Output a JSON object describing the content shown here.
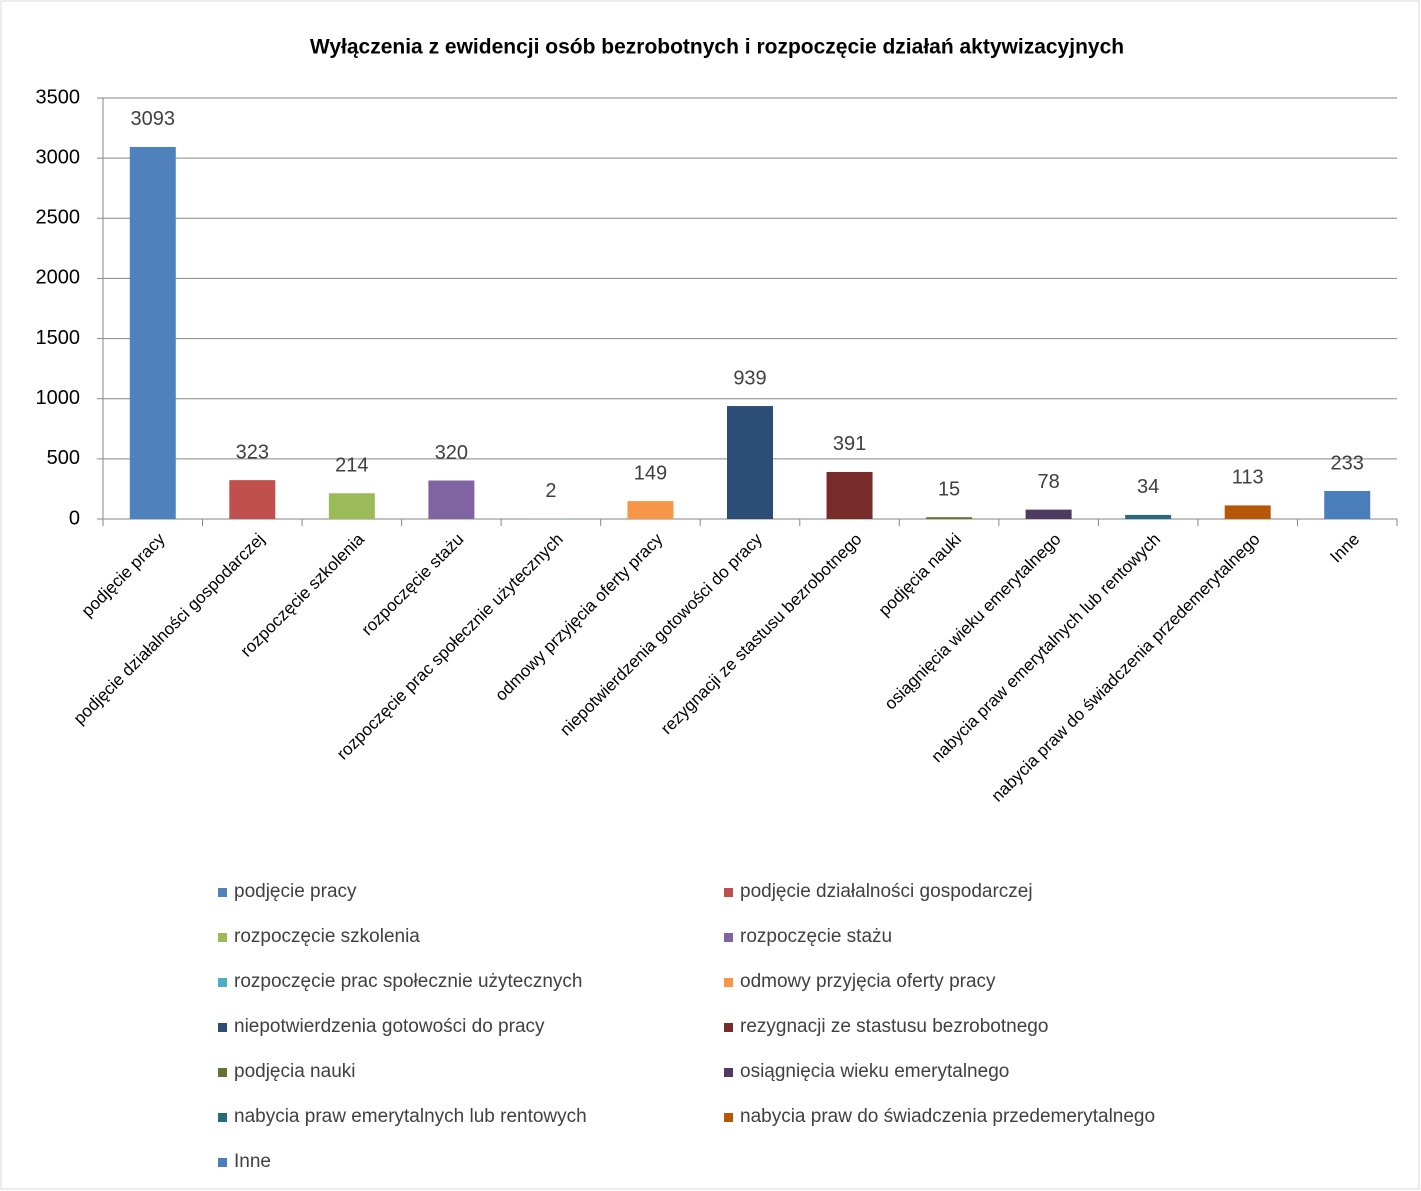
{
  "chart_data": {
    "type": "bar",
    "title": "Wyłączenia z ewidencji osób bezrobotnych i rozpoczęcie działań aktywizacyjnych",
    "categories": [
      "podjęcie pracy",
      "podjęcie działalności gospodarczej",
      "rozpoczęcie szkolenia",
      "rozpoczęcie stażu",
      "rozpoczęcie prac społecznie użytecznych",
      "odmowy przyjęcia oferty pracy",
      "niepotwierdzenia gotowości do pracy",
      "rezygnacji ze stastusu bezrobotnego",
      "podjęcia nauki",
      "osiągnięcia wieku emerytalnego",
      "nabycia praw emerytalnych lub rentowych",
      "nabycia praw do świadczenia przedemerytalnego",
      "Inne"
    ],
    "values": [
      3093,
      323,
      214,
      320,
      2,
      149,
      939,
      391,
      15,
      78,
      34,
      113,
      233
    ],
    "colors": [
      "#4f81bd",
      "#c0504d",
      "#9bbb59",
      "#8064a2",
      "#4bacc6",
      "#f79646",
      "#2c4d75",
      "#772c2a",
      "#5f7530",
      "#4d3b62",
      "#276a7c",
      "#b65708",
      "#4a7ebb"
    ],
    "ylim": [
      0,
      3500
    ],
    "yticks": [
      0,
      500,
      1000,
      1500,
      2000,
      2500,
      3000,
      3500
    ],
    "grid": true,
    "legend": "bottom"
  }
}
